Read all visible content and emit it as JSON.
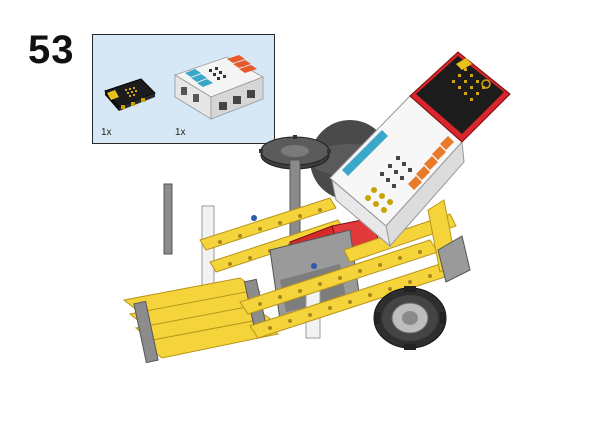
{
  "step": {
    "number": "53"
  },
  "parts_list": {
    "items": [
      {
        "name": "microbit-board",
        "quantity": "1x"
      },
      {
        "name": "expansion-box",
        "quantity": "1x"
      }
    ]
  },
  "colors": {
    "parts_box_bg": "#d6e8f5",
    "beam_yellow": "#f5d33a",
    "board_red": "#d8262c",
    "brick_gray": "#9a9a9a",
    "tire_dark": "#3a3a3a"
  }
}
